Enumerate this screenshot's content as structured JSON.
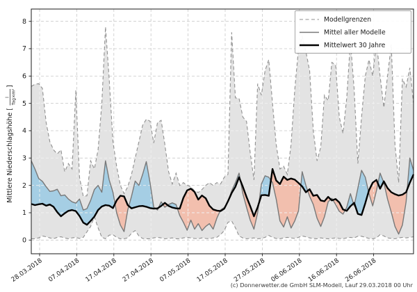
{
  "footer": {
    "credit": "(c) Donnerwetter.de GmbH SLM-Modell, Lauf 29.03.2018 00 Uhr"
  },
  "legend": {
    "items": [
      {
        "label": "Modellgrenzen",
        "style": "dashed-gray"
      },
      {
        "label": "Mittel aller Modelle",
        "style": "solid-gray"
      },
      {
        "label": "Mittelwert 30 Jahre",
        "style": "solid-black-thick"
      }
    ]
  },
  "y_axis": {
    "label_prefix": "Mittlere Niederschlagshöhe [",
    "frac_numerator": "l",
    "frac_denominator": "Tag×m²",
    "label_suffix": "]",
    "ticks": [
      0,
      1,
      2,
      3,
      4,
      5,
      6,
      7,
      8
    ]
  },
  "x_axis": {
    "tick_labels": [
      "28.03.2018",
      "07.04.2018",
      "17.04.2018",
      "27.04.2018",
      "07.05.2018",
      "17.05.2018",
      "27.05.2018",
      "06.06.2018",
      "16.06.2018",
      "26.06.2018"
    ],
    "tick_days": [
      2.25,
      12.25,
      22.25,
      32.25,
      42.25,
      52.25,
      62.25,
      72.25,
      82.25,
      92.25
    ]
  },
  "chart_data": {
    "type": "line",
    "title": "",
    "xlabel": "",
    "ylabel": "Mittlere Niederschlagshöhe [l/(Tag×m²)]",
    "ylim": [
      -0.5,
      8.45
    ],
    "grid": true,
    "legend_position": "upper right",
    "x_unit": "Tage (täglich, 28.03.2018 bis Anfang 07.2018)",
    "colors": {
      "band": "#e3e3e3",
      "bounds": "#8f8f8f",
      "mean": "#787878",
      "climate": "#000000",
      "fill_above": "#a5cee4",
      "fill_below": "#f2bfae",
      "grid_under": "#c8c8c8",
      "grid_over": "#f1f1f1",
      "frame": "#1a1a1a"
    },
    "series": [
      {
        "name": "Modellgrenzen (obere Grenze)",
        "style": "dashed",
        "values": [
          5.62,
          5.7,
          5.72,
          5.55,
          4.3,
          3.6,
          3.3,
          3.15,
          3.3,
          2.5,
          2.8,
          2.6,
          5.48,
          2.3,
          1.6,
          1.62,
          2.9,
          2.6,
          3.3,
          5.0,
          7.8,
          5.9,
          3.6,
          2.7,
          2.0,
          1.7,
          1.95,
          2.4,
          3.0,
          3.6,
          4.2,
          4.42,
          4.35,
          3.55,
          4.3,
          4.38,
          3.5,
          2.5,
          2.05,
          2.45,
          2.0,
          2.1,
          2.0,
          1.95,
          1.8,
          1.74,
          1.85,
          2.0,
          2.1,
          2.0,
          2.1,
          2.05,
          2.3,
          2.4,
          7.6,
          5.2,
          5.18,
          4.5,
          4.34,
          3.2,
          2.2,
          5.72,
          5.3,
          6.2,
          6.6,
          5.0,
          3.5,
          2.6,
          2.7,
          2.4,
          3.5,
          5.5,
          7.0,
          7.45,
          6.9,
          6.2,
          4.0,
          2.9,
          3.4,
          5.3,
          5.1,
          6.5,
          6.4,
          4.5,
          3.9,
          5.2,
          7.28,
          5.5,
          2.8,
          4.5,
          6.0,
          6.6,
          6.0,
          7.27,
          6.0,
          4.85,
          6.0,
          7.15,
          3.5,
          2.1,
          5.9,
          5.6,
          6.3,
          5.0
        ]
      },
      {
        "name": "Modellgrenzen (untere Grenze)",
        "style": "dashed",
        "values": [
          0.05,
          0.05,
          0.08,
          0.15,
          0.12,
          0.08,
          0.05,
          0.1,
          0.12,
          0.08,
          0.05,
          0.08,
          0.1,
          0.06,
          0.1,
          0.3,
          0.5,
          0.85,
          0.45,
          0.1,
          0.05,
          0.18,
          0.2,
          0.1,
          0.05,
          0.05,
          0.08,
          0.25,
          0.35,
          0.15,
          0.06,
          0.05,
          0.05,
          0.08,
          0.1,
          0.08,
          0.05,
          0.06,
          0.08,
          0.05,
          0.05,
          0.08,
          0.1,
          0.08,
          0.06,
          0.05,
          0.08,
          0.06,
          0.05,
          0.08,
          0.1,
          0.2,
          0.35,
          0.65,
          0.7,
          0.45,
          0.15,
          0.08,
          0.05,
          0.06,
          0.08,
          0.05,
          0.06,
          0.1,
          0.17,
          0.1,
          0.06,
          0.05,
          0.08,
          0.1,
          0.08,
          0.06,
          0.1,
          0.15,
          0.12,
          0.08,
          0.06,
          0.05,
          0.08,
          0.06,
          0.05,
          0.06,
          0.08,
          0.06,
          0.05,
          0.08,
          0.1,
          0.08,
          0.14,
          0.14,
          0.1,
          0.06,
          0.05,
          0.08,
          0.2,
          0.15,
          0.08,
          0.06,
          0.05,
          0.08,
          0.1,
          0.08,
          0.1,
          0.12
        ]
      },
      {
        "name": "Mittel aller Modelle",
        "style": "solid",
        "values": [
          2.9,
          2.6,
          2.25,
          2.15,
          1.95,
          1.78,
          1.8,
          1.86,
          1.62,
          1.65,
          1.5,
          1.4,
          1.35,
          1.5,
          1.1,
          1.15,
          1.45,
          1.85,
          2.0,
          1.75,
          2.9,
          2.2,
          1.75,
          1.0,
          0.55,
          0.31,
          1.1,
          1.6,
          2.16,
          2.0,
          2.4,
          2.87,
          2.1,
          1.2,
          1.1,
          1.4,
          1.2,
          1.3,
          1.36,
          1.3,
          0.9,
          0.65,
          0.36,
          0.73,
          0.4,
          0.6,
          0.35,
          0.5,
          0.6,
          0.4,
          0.8,
          1.1,
          1.19,
          1.4,
          1.8,
          2.1,
          2.45,
          1.7,
          1.2,
          0.73,
          0.4,
          1.0,
          2.05,
          2.35,
          2.3,
          2.1,
          1.5,
          0.7,
          0.48,
          0.85,
          0.44,
          0.7,
          1.07,
          2.5,
          2.0,
          1.6,
          1.3,
          0.8,
          0.5,
          0.85,
          1.4,
          1.53,
          1.3,
          1.05,
          0.95,
          1.2,
          1.7,
          1.25,
          1.9,
          2.55,
          2.3,
          1.7,
          1.25,
          1.8,
          2.45,
          2.1,
          1.5,
          1.02,
          0.5,
          0.22,
          0.55,
          1.4,
          3.0,
          2.55
        ]
      },
      {
        "name": "Mittelwert 30 Jahre",
        "style": "solid-thick",
        "values": [
          1.32,
          1.28,
          1.31,
          1.33,
          1.26,
          1.3,
          1.22,
          1.02,
          0.87,
          0.98,
          1.07,
          1.1,
          1.06,
          0.88,
          0.64,
          0.56,
          0.7,
          0.86,
          1.1,
          1.23,
          1.28,
          1.26,
          1.17,
          1.45,
          1.62,
          1.6,
          1.28,
          1.16,
          1.2,
          1.24,
          1.25,
          1.22,
          1.17,
          1.15,
          1.16,
          1.25,
          1.36,
          1.25,
          1.19,
          1.16,
          1.15,
          1.55,
          1.82,
          1.88,
          1.76,
          1.48,
          1.63,
          1.53,
          1.26,
          1.12,
          1.08,
          1.06,
          1.15,
          1.42,
          1.72,
          1.95,
          2.3,
          1.95,
          1.58,
          1.24,
          0.87,
          1.2,
          1.64,
          1.65,
          1.62,
          2.6,
          2.18,
          2.05,
          2.32,
          2.2,
          2.25,
          2.21,
          2.09,
          1.96,
          1.75,
          1.86,
          1.62,
          1.65,
          1.45,
          1.42,
          1.58,
          1.45,
          1.5,
          1.38,
          1.12,
          1.07,
          1.24,
          1.36,
          0.96,
          0.92,
          1.35,
          1.82,
          2.1,
          2.2,
          1.88,
          2.15,
          1.9,
          1.75,
          1.68,
          1.63,
          1.66,
          1.75,
          2.1,
          2.4
        ]
      }
    ]
  }
}
